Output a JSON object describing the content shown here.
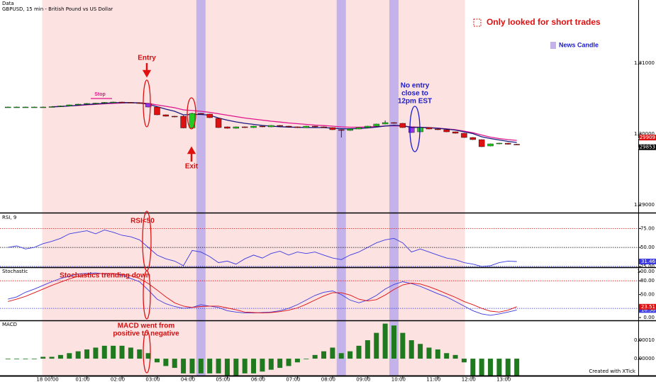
{
  "chart_data": [
    {
      "type": "candlestick",
      "label": "Data",
      "title": "GBPUSD, 15 min - British Pound vs US Dollar",
      "xticks": [
        {
          "value": 5,
          "label": "18 00:00"
        },
        {
          "value": 9,
          "label": "01:00"
        },
        {
          "value": 13,
          "label": "02:00"
        },
        {
          "value": 17,
          "label": "03:00"
        },
        {
          "value": 21,
          "label": "04:00"
        },
        {
          "value": 25,
          "label": "05:00"
        },
        {
          "value": 29,
          "label": "06:00"
        },
        {
          "value": 33,
          "label": "07:00"
        },
        {
          "value": 37,
          "label": "08:00"
        },
        {
          "value": 41,
          "label": "09:00"
        },
        {
          "value": 45,
          "label": "10:00"
        },
        {
          "value": 49,
          "label": "11:00"
        },
        {
          "value": 53,
          "label": "12:00"
        },
        {
          "value": 57,
          "label": "13:00"
        }
      ],
      "ylim": [
        1.2889,
        1.3189
      ],
      "yticks": [
        {
          "value": 1.31,
          "label": "1.31000"
        },
        {
          "value": 1.3,
          "label": "1.30000"
        },
        {
          "value": 1.29,
          "label": "1.29000"
        }
      ],
      "open": [
        1.3038,
        1.3038,
        1.3038,
        1.3038,
        1.3038,
        1.3038,
        1.30385,
        1.30395,
        1.3041,
        1.3042,
        1.3043,
        1.30435,
        1.30445,
        1.3045,
        1.30445,
        1.3044,
        1.3043,
        1.3038,
        1.3027,
        1.3025,
        1.3025,
        1.30085,
        1.3029,
        1.3028,
        1.3022,
        1.301,
        1.3008,
        1.301,
        1.3009,
        1.3011,
        1.301,
        1.3012,
        1.3011,
        1.301,
        1.3009,
        1.3011,
        1.301,
        1.3009,
        1.3006,
        1.3005,
        1.3007,
        1.3009,
        1.3011,
        1.3014,
        1.3016,
        1.3015,
        1.3009,
        1.3003,
        1.3009,
        1.3007,
        1.3006,
        1.3003,
        1.3001,
        1.2995,
        1.2992,
        1.2983,
        1.2986,
        1.2987,
        1.29855
      ],
      "high": [
        1.30385,
        1.30385,
        1.30385,
        1.30385,
        1.30385,
        1.3039,
        1.304,
        1.30415,
        1.30425,
        1.30435,
        1.3044,
        1.3045,
        1.30455,
        1.30455,
        1.3045,
        1.30445,
        1.30435,
        1.30385,
        1.30275,
        1.30255,
        1.3026,
        1.303,
        1.30295,
        1.30285,
        1.30225,
        1.30105,
        1.30105,
        1.30105,
        1.30115,
        1.30115,
        1.30125,
        1.30125,
        1.30115,
        1.30105,
        1.30115,
        1.30115,
        1.30105,
        1.30095,
        1.30065,
        1.30075,
        1.30095,
        1.30115,
        1.30145,
        1.3019,
        1.30165,
        1.30155,
        1.30095,
        1.30095,
        1.30095,
        1.30075,
        1.30065,
        1.30035,
        1.30015,
        1.29955,
        1.29925,
        1.29865,
        1.29875,
        1.29875,
        1.2986
      ],
      "low": [
        1.30375,
        1.30375,
        1.30375,
        1.30375,
        1.30375,
        1.30375,
        1.3038,
        1.3039,
        1.30405,
        1.30415,
        1.30425,
        1.3043,
        1.3044,
        1.3044,
        1.30435,
        1.30425,
        1.30375,
        1.30265,
        1.30245,
        1.30235,
        1.3008,
        1.3008,
        1.30275,
        1.30225,
        1.30085,
        1.30075,
        1.30075,
        1.30085,
        1.30085,
        1.30095,
        1.30095,
        1.30105,
        1.30095,
        1.30085,
        1.30085,
        1.30095,
        1.30085,
        1.30055,
        1.2995,
        1.30045,
        1.30065,
        1.30085,
        1.30105,
        1.30135,
        1.30145,
        1.30085,
        1.30015,
        1.30025,
        1.30065,
        1.30055,
        1.30025,
        1.30005,
        1.29945,
        1.29915,
        1.29815,
        1.29825,
        1.29855,
        1.2985,
        1.2985
      ],
      "close": [
        1.3038,
        1.3038,
        1.3038,
        1.3038,
        1.3038,
        1.30385,
        1.30395,
        1.3041,
        1.3042,
        1.3043,
        1.30435,
        1.30445,
        1.3045,
        1.30445,
        1.3044,
        1.3043,
        1.3038,
        1.3027,
        1.3025,
        1.3024,
        1.30085,
        1.3029,
        1.3028,
        1.3023,
        1.3009,
        1.3008,
        1.301,
        1.3009,
        1.3011,
        1.301,
        1.3012,
        1.3011,
        1.301,
        1.3009,
        1.3011,
        1.301,
        1.3009,
        1.3006,
        1.3005,
        1.3007,
        1.3009,
        1.3011,
        1.3014,
        1.3016,
        1.3015,
        1.3009,
        1.3002,
        1.3009,
        1.3007,
        1.3006,
        1.3003,
        1.3001,
        1.2995,
        1.2992,
        1.2982,
        1.2986,
        1.2987,
        1.29855,
        1.29853
      ],
      "last_label": "1.29853",
      "up_color": "#22cc22",
      "down_color": "#dd1111",
      "highlight_color": "#9933ee",
      "highlight": [
        16,
        46
      ],
      "shade": [
        3.9,
        52.1
      ],
      "shade_color": "#fde2e2",
      "news_bands": [
        22,
        38,
        44
      ],
      "news_color": "#c4b3ea",
      "lines": [
        {
          "color": "#e0168c",
          "last_label": "1.29909",
          "values": [
            null,
            null,
            null,
            null,
            null,
            1.30385,
            1.30388,
            1.30395,
            1.30402,
            1.3041,
            1.30418,
            1.30425,
            1.30432,
            1.30437,
            1.3044,
            1.3044,
            1.3043,
            1.3041,
            1.3039,
            1.3037,
            1.3034,
            1.3033,
            1.3032,
            1.30305,
            1.30285,
            1.30265,
            1.30245,
            1.30225,
            1.3021,
            1.30195,
            1.3018,
            1.30168,
            1.30155,
            1.30145,
            1.30135,
            1.30125,
            1.30118,
            1.3011,
            1.301,
            1.30095,
            1.30095,
            1.30098,
            1.30105,
            1.30112,
            1.30115,
            1.30112,
            1.301,
            1.30095,
            1.3009,
            1.30082,
            1.30072,
            1.3006,
            1.3004,
            1.30018,
            1.29985,
            1.29955,
            1.29935,
            1.2992,
            1.29909
          ]
        },
        {
          "color": "#1a1a80",
          "values": [
            null,
            null,
            null,
            null,
            null,
            1.30382,
            1.30386,
            1.30395,
            1.30405,
            1.30415,
            1.30423,
            1.30432,
            1.3044,
            1.30443,
            1.30442,
            1.30437,
            1.3042,
            1.30385,
            1.3035,
            1.3032,
            1.3027,
            1.30275,
            1.30275,
            1.30265,
            1.30225,
            1.30195,
            1.3017,
            1.3015,
            1.30135,
            1.3012,
            1.3011,
            1.30102,
            1.30097,
            1.30094,
            1.30092,
            1.3009,
            1.3009,
            1.30082,
            1.30074,
            1.30073,
            1.30077,
            1.30085,
            1.30097,
            1.30112,
            1.30122,
            1.30115,
            1.30093,
            1.30092,
            1.30087,
            1.3008,
            1.30068,
            1.30055,
            1.3003,
            1.30005,
            1.2996,
            1.29935,
            1.29915,
            1.29895,
            1.2988
          ]
        }
      ],
      "annotations": [
        {
          "lines": [
            "Only looked for short trades"
          ],
          "color": "#e01010"
        },
        {
          "lines": [
            "News Candle"
          ],
          "color": "#1a1ad0"
        },
        {
          "lines": [
            "Entry"
          ],
          "color": "#d01010"
        },
        {
          "lines": [
            "Stop"
          ],
          "color": "#e0168c"
        },
        {
          "lines": [
            "Exit"
          ],
          "color": "#d01010"
        },
        {
          "lines": [
            "No entry",
            "close to",
            "12pm EST"
          ],
          "color": "#1a1ad0"
        }
      ]
    },
    {
      "type": "line",
      "label": "RSI, 9",
      "ylim": [
        24,
        94
      ],
      "yticks": [
        {
          "value": 75,
          "label": "75.00"
        },
        {
          "value": 50,
          "label": "50.00"
        },
        {
          "value": 25,
          "label": "25.00"
        }
      ],
      "levels": [
        {
          "value": 75,
          "color": "#e01010"
        },
        {
          "value": 50,
          "color": "#000000"
        },
        {
          "value": 25,
          "color": "#2a2ae0"
        }
      ],
      "series": [
        {
          "color": "#3a3ae0",
          "last_label": "31.46",
          "values": [
            50,
            52,
            48,
            50,
            55,
            58,
            62,
            68,
            70,
            72,
            68,
            73,
            70,
            66,
            64,
            60,
            50,
            40,
            35,
            32,
            26,
            46,
            44,
            38,
            30,
            32,
            28,
            35,
            40,
            36,
            42,
            45,
            40,
            44,
            42,
            44,
            40,
            36,
            34,
            40,
            44,
            50,
            56,
            60,
            62,
            56,
            44,
            48,
            44,
            40,
            36,
            34,
            30,
            28,
            25,
            26,
            30,
            32,
            31.46
          ]
        }
      ],
      "annotations": [
        {
          "lines": [
            "RSI<50"
          ],
          "color": "#d01010"
        }
      ]
    },
    {
      "type": "line",
      "label": "Stochastic",
      "ylim": [
        -6,
        108
      ],
      "yticks": [
        {
          "value": 100,
          "label": "100.00"
        },
        {
          "value": 80,
          "label": "80.00"
        },
        {
          "value": 50,
          "label": "50.00"
        },
        {
          "value": 0,
          "label": "0.00"
        }
      ],
      "levels": [
        {
          "value": 80,
          "color": "#e01010"
        },
        {
          "value": 20,
          "color": "#2a2ae0"
        }
      ],
      "series": [
        {
          "color": "#3a3ae0",
          "last_label": "16.56",
          "values": [
            40,
            45,
            55,
            62,
            70,
            78,
            85,
            90,
            95,
            96,
            97,
            95,
            96,
            92,
            85,
            78,
            60,
            40,
            30,
            24,
            20,
            22,
            28,
            25,
            22,
            15,
            12,
            10,
            10,
            11,
            12,
            15,
            20,
            28,
            38,
            48,
            55,
            58,
            50,
            38,
            32,
            38,
            48,
            62,
            72,
            78,
            74,
            68,
            60,
            52,
            45,
            35,
            25,
            15,
            8,
            5,
            8,
            12,
            16.56
          ]
        },
        {
          "color": "#e01010",
          "last_label": "23.51",
          "values": [
            35,
            40,
            46,
            54,
            62,
            70,
            77,
            84,
            90,
            93,
            95,
            96,
            96,
            94,
            91,
            85,
            74,
            60,
            45,
            32,
            25,
            22,
            24,
            25,
            25,
            21,
            17,
            12,
            11,
            10,
            11,
            13,
            16,
            21,
            29,
            38,
            47,
            54,
            54,
            49,
            40,
            36,
            39,
            49,
            61,
            71,
            75,
            73,
            67,
            60,
            52,
            44,
            35,
            28,
            20,
            14,
            12,
            16,
            23.51
          ]
        }
      ],
      "annotations": [
        {
          "lines": [
            "Stochastics trending down"
          ],
          "color": "#d01010"
        }
      ]
    },
    {
      "type": "bar",
      "label": "MACD",
      "ylim": [
        -9.2e-05,
        0.000204
      ],
      "color": "#1f7a1f",
      "yticks": [
        {
          "value": 0.0001,
          "label": "0.00010"
        },
        {
          "value": 0,
          "label": "0.00000"
        }
      ],
      "values": [
        0,
        0,
        0,
        0,
        1e-05,
        1e-05,
        2e-05,
        3e-05,
        4e-05,
        5e-05,
        6e-05,
        7e-05,
        7e-05,
        7e-05,
        6e-05,
        5e-05,
        3e-05,
        -2e-05,
        -4e-05,
        -5e-05,
        -8e-05,
        -8e-05,
        -8e-05,
        -8e-05,
        -8e-05,
        -9e-05,
        -9e-05,
        -8e-05,
        -8e-05,
        -7e-05,
        -6e-05,
        -5e-05,
        -4e-05,
        -2e-05,
        0,
        2e-05,
        4e-05,
        6e-05,
        3e-05,
        4e-05,
        7e-05,
        0.0001,
        0.00014,
        0.00019,
        0.00018,
        0.00014,
        0.0001,
        8e-05,
        6e-05,
        5e-05,
        3e-05,
        2e-05,
        -2e-05,
        -9e-05,
        -9e-05,
        -9e-05,
        -9e-05,
        -9e-05,
        -9e-05
      ],
      "annotations": [
        {
          "lines": [
            "MACD went from",
            "positive to negative"
          ],
          "color": "#d01010"
        }
      ],
      "credit": "Created with XTick"
    }
  ]
}
